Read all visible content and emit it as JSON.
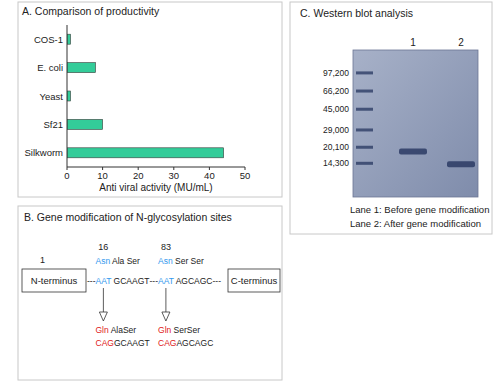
{
  "chart_data": [
    {
      "type": "bar",
      "title": "A. Comparison of productivity",
      "orientation": "horizontal",
      "categories": [
        "COS-1",
        "E. coli",
        "Yeast",
        "Sf21",
        "Silkworm"
      ],
      "values": [
        1,
        8,
        1,
        10,
        44
      ],
      "color": "#33cc99",
      "xlabel": "Anti viral activity (MU/mL)",
      "xlim": [
        0,
        50
      ],
      "xticks": [
        0,
        10,
        20,
        30,
        40,
        50
      ],
      "grid": false
    },
    {
      "type": "blot",
      "title": "C. Western blot analysis",
      "categories": [
        "1",
        "2"
      ],
      "values": [
        18400,
        14000
      ],
      "log": "y",
      "ylim": [
        7000,
        158000
      ],
      "yticks": [
        {
          "value": 97200,
          "label": "97,200"
        },
        {
          "value": 66200,
          "label": "66,200"
        },
        {
          "value": 45000,
          "label": "45,000"
        },
        {
          "value": 29000,
          "label": "29,000"
        },
        {
          "value": 20100,
          "label": "20,100"
        },
        {
          "value": 14300,
          "label": "14,300"
        }
      ],
      "color": "#26355f",
      "annotations": [
        "Lane 1: Before gene modification",
        "Lane 2: After gene modification"
      ]
    }
  ],
  "diagram": {
    "title": "B. Gene modification of N-glycosylation sites",
    "start_position": 1,
    "n_terminus": "N-terminus",
    "c_terminus": "C-terminus",
    "separator": "---",
    "original_color": "#3399ee",
    "modified_color": "#e02020",
    "sites": [
      {
        "position": 16,
        "residue": "Asn",
        "next_residues": "Ala Ser",
        "codon": "AAT",
        "next_codons": "GCAAGT",
        "new_residue": "Gln",
        "new_next_residues": "AlaSer",
        "new_codon": "CAG"
      },
      {
        "position": 83,
        "residue": "Asn",
        "next_residues": "Ser Ser",
        "codon": "AAT",
        "next_codons": "AGCAGC",
        "new_residue": "Gln",
        "new_next_residues": "SerSer",
        "new_codon": "CAG"
      }
    ]
  }
}
